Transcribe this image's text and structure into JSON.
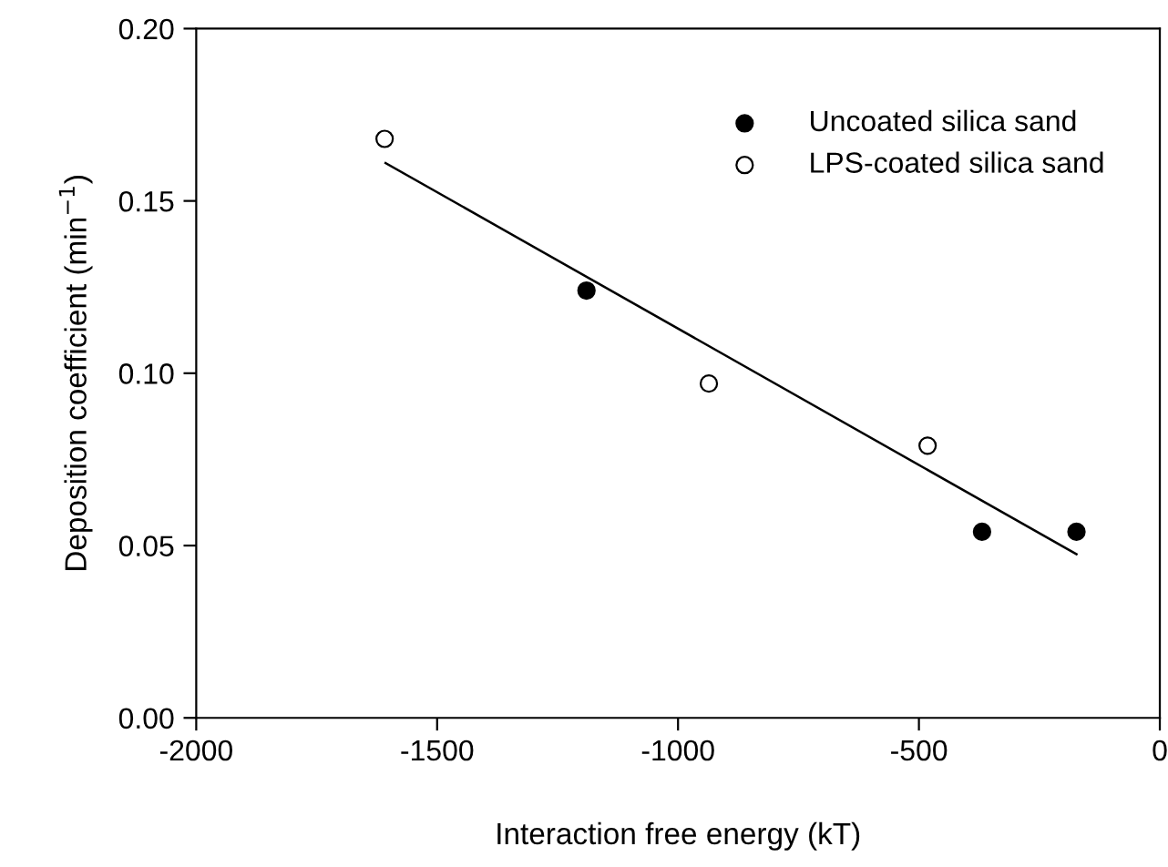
{
  "chart_data": {
    "type": "scatter",
    "xlabel": "Interaction free energy (kT)",
    "ylabel": "Deposition coefficient (min$^{−1}$)",
    "xlim": [
      -2000,
      0
    ],
    "xticks": [
      -2000,
      -1500,
      -1000,
      -500,
      0
    ],
    "ylim": [
      0,
      0.2
    ],
    "yticks": [
      {
        "value": 0,
        "label": "0.00"
      },
      {
        "value": 0.05,
        "label": "0.05"
      },
      {
        "value": 0.1,
        "label": "0.10"
      },
      {
        "value": 0.15,
        "label": "0.15"
      },
      {
        "value": 0.2,
        "label": "0.20"
      }
    ],
    "grid": false,
    "legend": "top right",
    "series": [
      {
        "name": "Uncoated silica sand",
        "color": "#000000",
        "marker": "circle",
        "x": [
          -1190,
          -369,
          -173
        ],
        "values": [
          0.124,
          0.054,
          0.054
        ]
      },
      {
        "name": "LPS-coated silica sand",
        "color": "#ffffff",
        "marker": "circle",
        "x": [
          -1609,
          -936,
          -482
        ],
        "values": [
          0.168,
          0.097,
          0.079
        ]
      },
      {
        "type": "line",
        "color": "#000000",
        "marker": "none",
        "x": [
          -1607,
          -173
        ],
        "values": [
          0.161,
          0.0475
        ]
      }
    ]
  }
}
